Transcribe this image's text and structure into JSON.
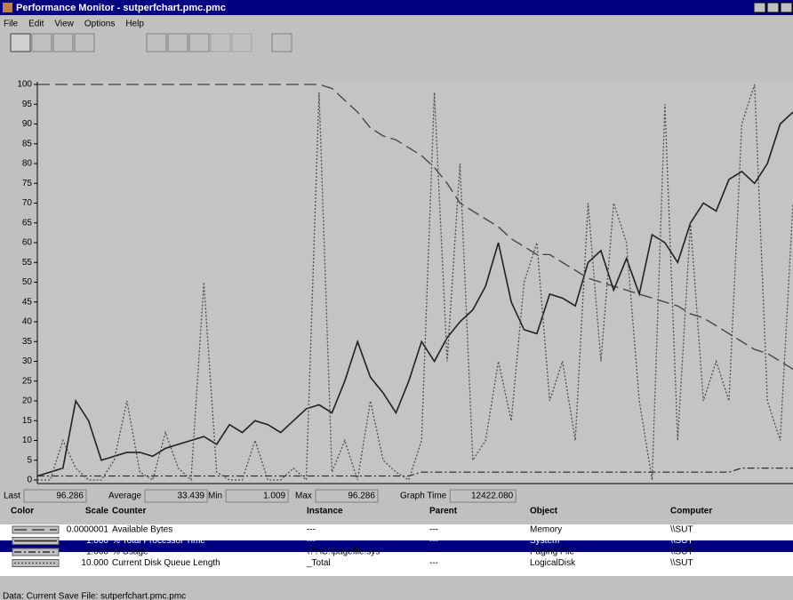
{
  "window": {
    "title": "Performance Monitor - sutperfchart.pmc.pmc",
    "menu": [
      "File",
      "Edit",
      "View",
      "Options",
      "Help"
    ]
  },
  "chart_data": {
    "type": "line",
    "ylim": [
      0,
      100
    ],
    "yticks": [
      0,
      5,
      10,
      15,
      20,
      25,
      30,
      35,
      40,
      45,
      50,
      55,
      60,
      65,
      70,
      75,
      80,
      85,
      90,
      95,
      100
    ],
    "series": [
      {
        "name": "Available Bytes",
        "color": "#404040",
        "style": "dashed",
        "scale": "0.0000001",
        "instance": "---",
        "parent": "---",
        "object": "Memory",
        "computer": "\\\\SUT",
        "values": [
          100,
          100,
          100,
          100,
          100,
          100,
          100,
          100,
          100,
          100,
          100,
          100,
          100,
          100,
          100,
          100,
          100,
          100,
          100,
          100,
          100,
          100,
          100,
          99,
          96,
          93,
          89,
          87,
          86,
          84,
          82,
          79,
          75,
          70,
          68,
          66,
          64,
          61,
          59,
          57,
          57,
          55,
          53,
          51,
          50,
          49,
          48,
          47,
          46,
          45,
          44,
          42,
          41,
          39,
          37,
          35,
          33,
          32,
          30,
          28
        ]
      },
      {
        "name": "% Total Processor Time",
        "color": "#202020",
        "style": "solid",
        "scale": "1.000",
        "instance": "---",
        "parent": "---",
        "object": "System",
        "computer": "\\\\SUT",
        "values": [
          1,
          2,
          3,
          20,
          15,
          5,
          6,
          7,
          7,
          6,
          8,
          9,
          10,
          11,
          9,
          14,
          12,
          15,
          14,
          12,
          15,
          18,
          19,
          17,
          25,
          35,
          26,
          22,
          17,
          25,
          35,
          30,
          36,
          40,
          43,
          49,
          60,
          45,
          38,
          37,
          47,
          46,
          44,
          55,
          58,
          48,
          56,
          47,
          62,
          60,
          55,
          65,
          70,
          68,
          76,
          78,
          75,
          80,
          90,
          93
        ]
      },
      {
        "name": "% Usage",
        "color": "#303030",
        "style": "dashdot",
        "scale": "1.000",
        "instance": "\\??\\C:\\pagefile.sys",
        "parent": "---",
        "object": "Paging File",
        "computer": "\\\\SUT",
        "values": [
          1,
          1,
          1,
          1,
          1,
          1,
          1,
          1,
          1,
          1,
          1,
          1,
          1,
          1,
          1,
          1,
          1,
          1,
          1,
          1,
          1,
          1,
          1,
          1,
          1,
          1,
          1,
          1,
          1,
          1,
          2,
          2,
          2,
          2,
          2,
          2,
          2,
          2,
          2,
          2,
          2,
          2,
          2,
          2,
          2,
          2,
          2,
          2,
          2,
          2,
          2,
          2,
          2,
          2,
          2,
          3,
          3,
          3,
          3,
          3
        ]
      },
      {
        "name": "Current Disk Queue Length",
        "color": "#505050",
        "style": "dotted",
        "scale": "10.000",
        "instance": "_Total",
        "parent": "---",
        "object": "LogicalDisk",
        "computer": "\\\\SUT",
        "values": [
          0,
          0,
          10,
          3,
          0,
          0,
          5,
          20,
          2,
          0,
          12,
          3,
          0,
          50,
          2,
          0,
          0,
          10,
          0,
          0,
          3,
          0,
          98,
          2,
          10,
          0,
          20,
          5,
          2,
          0,
          10,
          98,
          30,
          80,
          5,
          10,
          30,
          15,
          50,
          60,
          20,
          30,
          10,
          70,
          30,
          70,
          60,
          20,
          0,
          95,
          10,
          65,
          20,
          30,
          20,
          90,
          100,
          20,
          10,
          70
        ]
      }
    ]
  },
  "stats": [
    {
      "label": "Last",
      "value": "96.286"
    },
    {
      "label": "Average",
      "value": "33.439"
    },
    {
      "label": "Min",
      "value": "1.009"
    },
    {
      "label": "Max",
      "value": "96.286"
    },
    {
      "label": "Graph Time",
      "value": "12422.080"
    }
  ],
  "legend_header": [
    "Color",
    "Scale",
    "Counter",
    "Instance",
    "Parent",
    "Object",
    "Computer"
  ],
  "status": "Data: Current  Save File: sutperfchart.pmc.pmc"
}
